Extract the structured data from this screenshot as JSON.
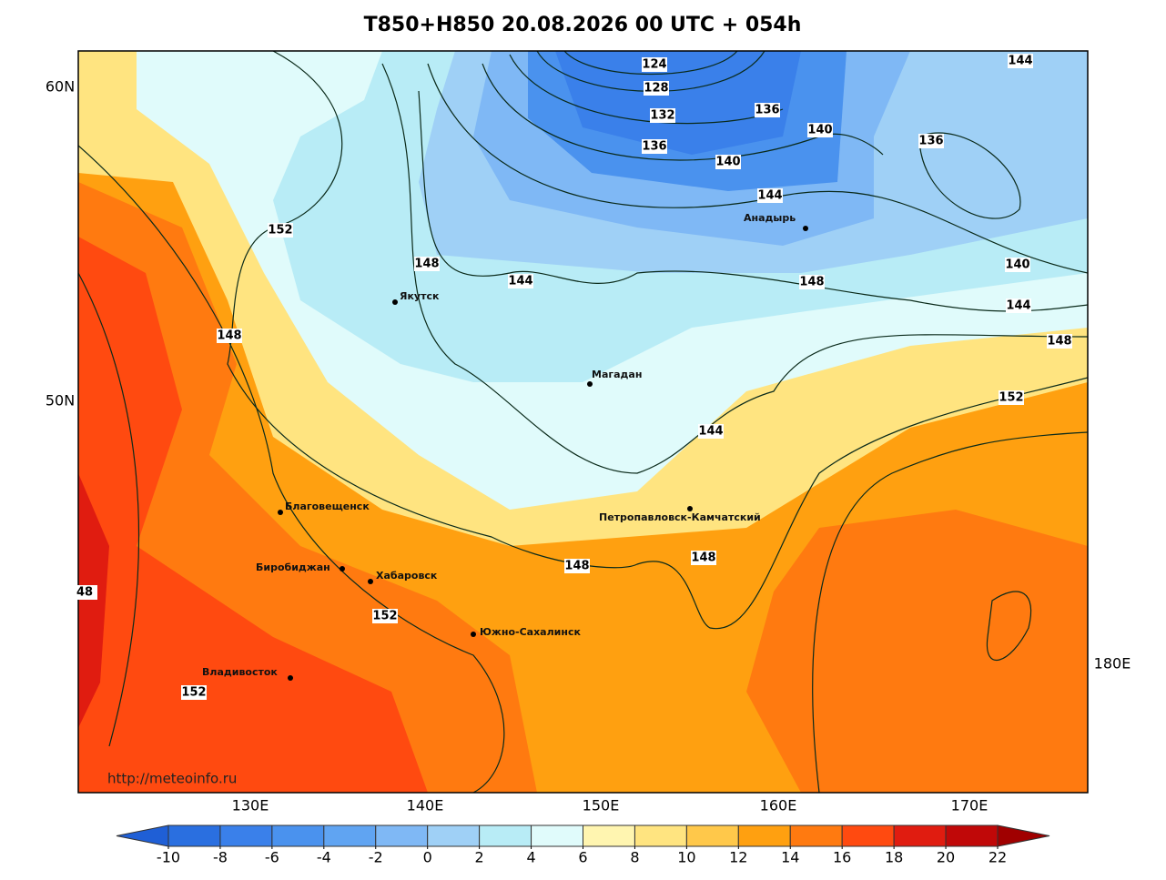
{
  "title": "T850+H850 20.08.2026 00 UTC + 054h",
  "source": "http://meteoinfo.ru",
  "lat_labels": [
    "60N",
    "50N"
  ],
  "lon_labels": [
    "130E",
    "140E",
    "150E",
    "160E",
    "170E",
    "180E"
  ],
  "cities": [
    "Якутск",
    "Магадан",
    "Анадырь",
    "Благовещенск",
    "Биробиджан",
    "Хабаровск",
    "Южно-Сахалинск",
    "Владивосток",
    "Петропавловск-Камчатский"
  ],
  "contour_labels": [
    "124",
    "128",
    "132",
    "136",
    "136",
    "140",
    "140",
    "144",
    "144",
    "136",
    "140",
    "144",
    "148",
    "152",
    "148",
    "144",
    "148",
    "152",
    "148",
    "144",
    "148",
    "148",
    "152",
    "152",
    "48"
  ],
  "colorbar": {
    "ticks": [
      -10,
      -8,
      -6,
      -4,
      -2,
      0,
      2,
      4,
      6,
      8,
      10,
      12,
      14,
      16,
      18,
      20,
      22
    ],
    "colors": [
      "#1f5fd6",
      "#2a6fe0",
      "#3a80ea",
      "#4a92ee",
      "#60a4f2",
      "#7fb8f5",
      "#9fd0f6",
      "#b8ecf6",
      "#e0fbfb",
      "#fff5b0",
      "#ffe480",
      "#ffc84a",
      "#ffa010",
      "#ff7a10",
      "#ff4a10",
      "#e01c10",
      "#c00808",
      "#a00000"
    ]
  }
}
